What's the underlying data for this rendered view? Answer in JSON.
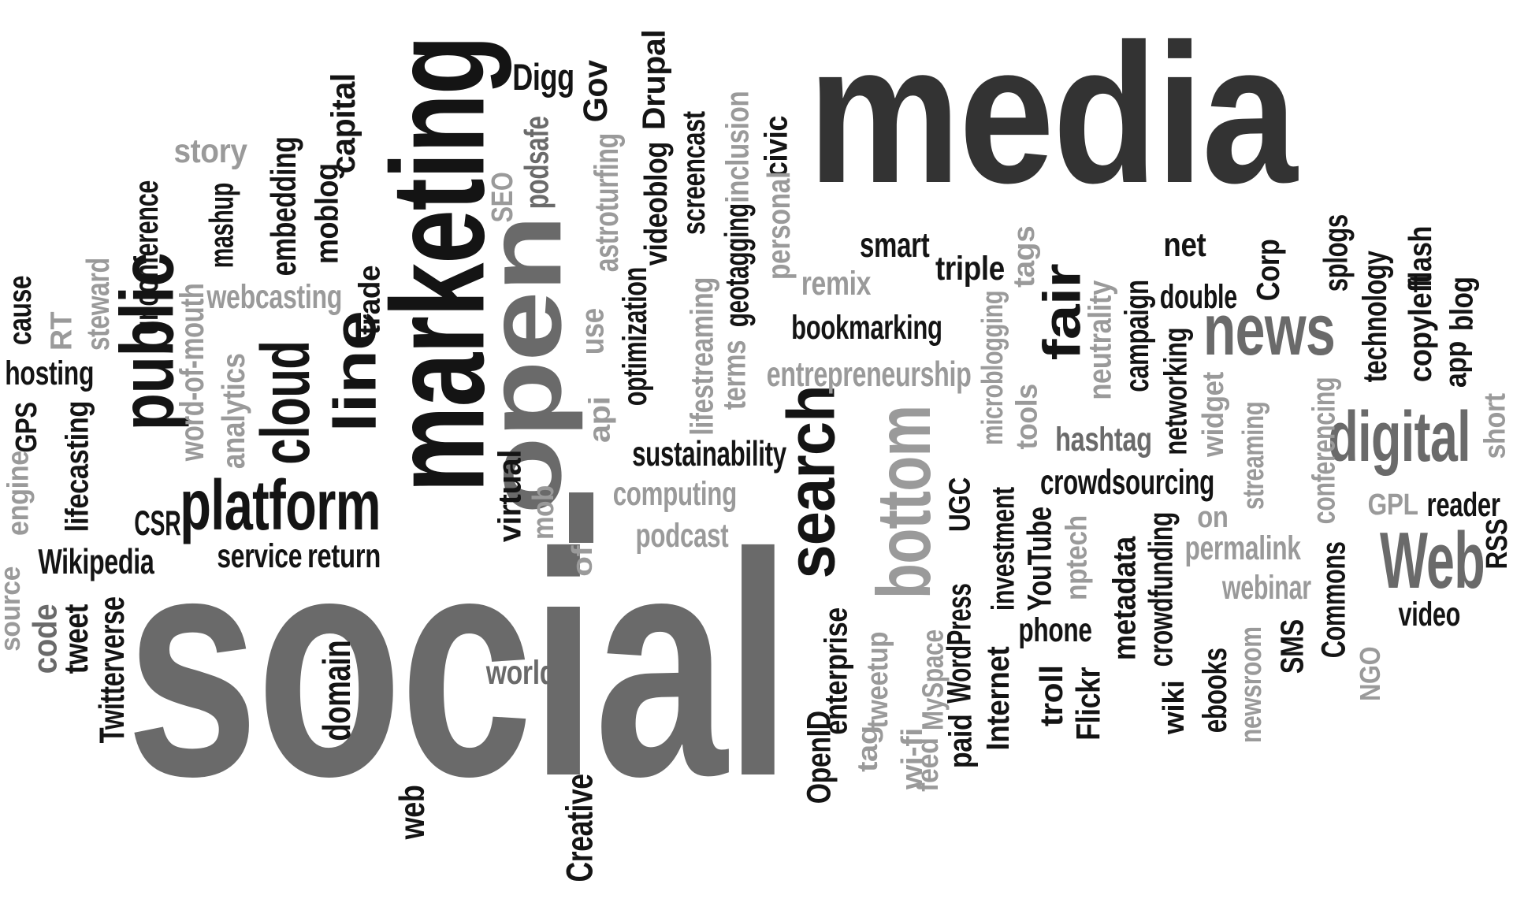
{
  "palette": {
    "black": "#141414",
    "dark": "#333333",
    "mid": "#6a6a6a",
    "light": "#9a9a9a"
  },
  "words": [
    {
      "text": "media",
      "tone": "dark"
    },
    {
      "text": "social",
      "tone": "mid"
    },
    {
      "text": "marketing",
      "tone": "black"
    },
    {
      "text": "open",
      "tone": "mid"
    },
    {
      "text": "platform",
      "tone": "black"
    },
    {
      "text": "public",
      "tone": "black"
    },
    {
      "text": "cloud",
      "tone": "black"
    },
    {
      "text": "line",
      "tone": "black"
    },
    {
      "text": "search",
      "tone": "black"
    },
    {
      "text": "bottom",
      "tone": "light"
    },
    {
      "text": "news",
      "tone": "mid"
    },
    {
      "text": "digital",
      "tone": "mid"
    },
    {
      "text": "Web",
      "tone": "mid"
    },
    {
      "text": "fair",
      "tone": "black"
    },
    {
      "text": "Digg",
      "tone": "black"
    },
    {
      "text": "Gov",
      "tone": "black"
    },
    {
      "text": "Drupal",
      "tone": "black"
    },
    {
      "text": "story",
      "tone": "light"
    },
    {
      "text": "capital",
      "tone": "black"
    },
    {
      "text": "moblog",
      "tone": "black"
    },
    {
      "text": "embedding",
      "tone": "black"
    },
    {
      "text": "mashup",
      "tone": "black"
    },
    {
      "text": "unconference",
      "tone": "black"
    },
    {
      "text": "steward",
      "tone": "light"
    },
    {
      "text": "RT",
      "tone": "light"
    },
    {
      "text": "cause",
      "tone": "black"
    },
    {
      "text": "hosting",
      "tone": "black"
    },
    {
      "text": "GPS",
      "tone": "black"
    },
    {
      "text": "engine",
      "tone": "light"
    },
    {
      "text": "lifecasting",
      "tone": "black"
    },
    {
      "text": "word-of-mouth",
      "tone": "light"
    },
    {
      "text": "analytics",
      "tone": "light"
    },
    {
      "text": "webcasting",
      "tone": "light"
    },
    {
      "text": "trade",
      "tone": "black"
    },
    {
      "text": "CSR",
      "tone": "black"
    },
    {
      "text": "Wikipedia",
      "tone": "black"
    },
    {
      "text": "service",
      "tone": "black"
    },
    {
      "text": "return",
      "tone": "black"
    },
    {
      "text": "source",
      "tone": "light"
    },
    {
      "text": "code",
      "tone": "mid"
    },
    {
      "text": "tweet",
      "tone": "black"
    },
    {
      "text": "Twitterverse",
      "tone": "black"
    },
    {
      "text": "domain",
      "tone": "black"
    },
    {
      "text": "web",
      "tone": "black"
    },
    {
      "text": "world",
      "tone": "mid"
    },
    {
      "text": "Creative",
      "tone": "black"
    },
    {
      "text": "SEO",
      "tone": "light"
    },
    {
      "text": "podsafe",
      "tone": "mid"
    },
    {
      "text": "astroturfing",
      "tone": "light"
    },
    {
      "text": "videoblog",
      "tone": "black"
    },
    {
      "text": "screencast",
      "tone": "black"
    },
    {
      "text": "inclusion",
      "tone": "light"
    },
    {
      "text": "civic",
      "tone": "black"
    },
    {
      "text": "personal",
      "tone": "light"
    },
    {
      "text": "geotagging",
      "tone": "black"
    },
    {
      "text": "lifestreaming",
      "tone": "light"
    },
    {
      "text": "terms",
      "tone": "light"
    },
    {
      "text": "optimization",
      "tone": "black"
    },
    {
      "text": "use",
      "tone": "light"
    },
    {
      "text": "api",
      "tone": "light"
    },
    {
      "text": "virtual",
      "tone": "black"
    },
    {
      "text": "mob",
      "tone": "light"
    },
    {
      "text": "of",
      "tone": "light"
    },
    {
      "text": "sustainability",
      "tone": "black"
    },
    {
      "text": "computing",
      "tone": "light"
    },
    {
      "text": "podcast",
      "tone": "light"
    },
    {
      "text": "smart",
      "tone": "black"
    },
    {
      "text": "remix",
      "tone": "light"
    },
    {
      "text": "triple",
      "tone": "black"
    },
    {
      "text": "tags",
      "tone": "light"
    },
    {
      "text": "bookmarking",
      "tone": "black"
    },
    {
      "text": "entrepreneurship",
      "tone": "light"
    },
    {
      "text": "microblogging",
      "tone": "light"
    },
    {
      "text": "tools",
      "tone": "light"
    },
    {
      "text": "neutrality",
      "tone": "light"
    },
    {
      "text": "campaign",
      "tone": "black"
    },
    {
      "text": "net",
      "tone": "black"
    },
    {
      "text": "double",
      "tone": "black"
    },
    {
      "text": "Corp",
      "tone": "black"
    },
    {
      "text": "splogs",
      "tone": "black"
    },
    {
      "text": "technology",
      "tone": "black"
    },
    {
      "text": "flash",
      "tone": "black"
    },
    {
      "text": "copyleft",
      "tone": "black"
    },
    {
      "text": "blog",
      "tone": "black"
    },
    {
      "text": "app",
      "tone": "black"
    },
    {
      "text": "short",
      "tone": "light"
    },
    {
      "text": "hashtag",
      "tone": "mid"
    },
    {
      "text": "networking",
      "tone": "black"
    },
    {
      "text": "widget",
      "tone": "light"
    },
    {
      "text": "crowdsourcing",
      "tone": "black"
    },
    {
      "text": "streaming",
      "tone": "light"
    },
    {
      "text": "conferencing",
      "tone": "light"
    },
    {
      "text": "GPL",
      "tone": "light"
    },
    {
      "text": "reader",
      "tone": "black"
    },
    {
      "text": "RSS",
      "tone": "black"
    },
    {
      "text": "on",
      "tone": "light"
    },
    {
      "text": "permalink",
      "tone": "light"
    },
    {
      "text": "webinar",
      "tone": "light"
    },
    {
      "text": "video",
      "tone": "black"
    },
    {
      "text": "NGO",
      "tone": "light"
    },
    {
      "text": "UGC",
      "tone": "black"
    },
    {
      "text": "investment",
      "tone": "black"
    },
    {
      "text": "YouTube",
      "tone": "black"
    },
    {
      "text": "nptech",
      "tone": "light"
    },
    {
      "text": "metadata",
      "tone": "black"
    },
    {
      "text": "crowdfunding",
      "tone": "black"
    },
    {
      "text": "Commons",
      "tone": "black"
    },
    {
      "text": "SMS",
      "tone": "black"
    },
    {
      "text": "newsroom",
      "tone": "light"
    },
    {
      "text": "ebooks",
      "tone": "black"
    },
    {
      "text": "wiki",
      "tone": "black"
    },
    {
      "text": "phone",
      "tone": "black"
    },
    {
      "text": "troll",
      "tone": "black"
    },
    {
      "text": "Flickr",
      "tone": "black"
    },
    {
      "text": "Internet",
      "tone": "black"
    },
    {
      "text": "WordPress",
      "tone": "black"
    },
    {
      "text": "paid",
      "tone": "black"
    },
    {
      "text": "feed",
      "tone": "light"
    },
    {
      "text": "MySpace",
      "tone": "light"
    },
    {
      "text": "wi-fi",
      "tone": "light"
    },
    {
      "text": "tweetup",
      "tone": "light"
    },
    {
      "text": "tag",
      "tone": "light"
    },
    {
      "text": "enterprise",
      "tone": "black"
    },
    {
      "text": "OpenID",
      "tone": "black"
    }
  ]
}
